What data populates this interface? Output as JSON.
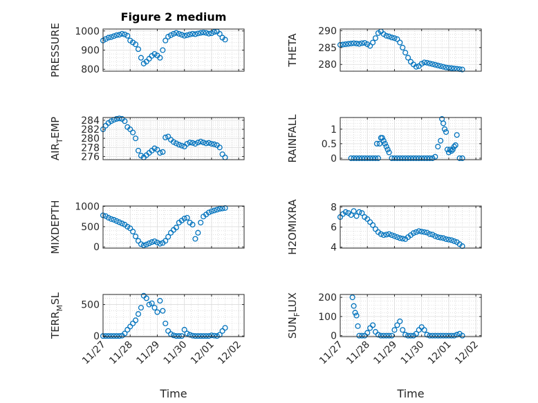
{
  "figure_title": "Figure 2 medium",
  "series_color": "#0072BD",
  "xaxis": {
    "label": "Time",
    "range": [
      0,
      5.2
    ],
    "ticks": [
      0,
      1,
      2,
      3,
      4,
      5
    ],
    "tick_labels": [
      "11/27",
      "11/28",
      "11/29",
      "11/30",
      "12/01",
      "12/02"
    ]
  },
  "chart_data": [
    {
      "type": "scatter",
      "title": "Figure 2 medium",
      "ylabel": "PRESSURE",
      "ylabel_sub": "",
      "xlabel": "",
      "ylim": [
        790,
        1010
      ],
      "yticks": [
        800,
        900,
        1000
      ],
      "ytick_labels": [
        "800",
        "900",
        "1000"
      ],
      "xticklabels_visible": false,
      "x": [
        0,
        0.1,
        0.2,
        0.3,
        0.4,
        0.5,
        0.6,
        0.7,
        0.8,
        0.9,
        1,
        1.1,
        1.2,
        1.3,
        1.4,
        1.5,
        1.6,
        1.7,
        1.8,
        1.9,
        2,
        2.1,
        2.2,
        2.3,
        2.4,
        2.5,
        2.6,
        2.7,
        2.8,
        2.9,
        3,
        3.1,
        3.2,
        3.3,
        3.4,
        3.5,
        3.6,
        3.7,
        3.8,
        3.9,
        4,
        4.1,
        4.2,
        4.3,
        4.4,
        4.5
      ],
      "y": [
        950,
        958,
        965,
        968,
        973,
        978,
        980,
        985,
        982,
        975,
        950,
        940,
        930,
        905,
        860,
        830,
        840,
        855,
        870,
        880,
        872,
        860,
        900,
        950,
        970,
        978,
        985,
        990,
        985,
        980,
        975,
        978,
        982,
        985,
        983,
        987,
        990,
        992,
        990,
        986,
        988,
        995,
        997,
        985,
        965,
        955
      ]
    },
    {
      "type": "scatter",
      "title": "",
      "ylabel": "THETA",
      "ylabel_sub": "",
      "xlabel": "",
      "ylim": [
        278,
        290.5
      ],
      "yticks": [
        280,
        285,
        290
      ],
      "ytick_labels": [
        "280",
        "285",
        "290"
      ],
      "xticklabels_visible": false,
      "x": [
        0,
        0.1,
        0.2,
        0.3,
        0.4,
        0.5,
        0.6,
        0.7,
        0.8,
        0.9,
        1,
        1.1,
        1.2,
        1.3,
        1.4,
        1.5,
        1.6,
        1.7,
        1.8,
        1.9,
        2,
        2.1,
        2.2,
        2.3,
        2.4,
        2.5,
        2.6,
        2.7,
        2.8,
        2.9,
        3,
        3.1,
        3.2,
        3.3,
        3.4,
        3.5,
        3.6,
        3.7,
        3.8,
        3.9,
        4,
        4.1,
        4.2,
        4.3,
        4.4,
        4.5
      ],
      "y": [
        285.8,
        285.9,
        286,
        286.1,
        286.2,
        286.3,
        286.2,
        286.1,
        286.3,
        286.4,
        286,
        285.5,
        286.5,
        287.8,
        289.3,
        289.8,
        289,
        288.5,
        288.3,
        288,
        287.8,
        287.5,
        286.5,
        285,
        283.5,
        282,
        280.8,
        280,
        279.3,
        279.5,
        280.2,
        280.6,
        280.5,
        280.3,
        280.1,
        279.9,
        279.7,
        279.5,
        279.3,
        279.1,
        279,
        278.9,
        278.8,
        278.7,
        278.6,
        278.5
      ]
    },
    {
      "type": "scatter",
      "title": "",
      "ylabel": "AIR",
      "ylabel_sub": "T",
      "ylabel_rest": "EMP",
      "xlabel": "",
      "ylim": [
        275.3,
        284.6
      ],
      "yticks": [
        276,
        278,
        280,
        282,
        284
      ],
      "ytick_labels": [
        "276",
        "278",
        "280",
        "282",
        "284"
      ],
      "xticklabels_visible": false,
      "x": [
        0,
        0.1,
        0.2,
        0.3,
        0.4,
        0.5,
        0.6,
        0.7,
        0.8,
        0.9,
        1,
        1.1,
        1.2,
        1.3,
        1.4,
        1.5,
        1.6,
        1.7,
        1.8,
        1.9,
        2,
        2.1,
        2.2,
        2.3,
        2.4,
        2.5,
        2.6,
        2.7,
        2.8,
        2.9,
        3,
        3.1,
        3.2,
        3.3,
        3.4,
        3.5,
        3.6,
        3.7,
        3.8,
        3.9,
        4,
        4.1,
        4.2,
        4.3,
        4.4,
        4.5
      ],
      "y": [
        282,
        282.8,
        283.4,
        283.8,
        284.1,
        284.3,
        284.4,
        284.3,
        283.8,
        282.5,
        282,
        281.3,
        280,
        277.3,
        276.2,
        275.8,
        276.3,
        276.8,
        277.3,
        277.8,
        277.5,
        276.8,
        277,
        280.2,
        280.4,
        279.7,
        279.2,
        278.9,
        278.6,
        278.4,
        278.2,
        278.8,
        279.1,
        279,
        278.8,
        279.1,
        279.3,
        279.1,
        278.9,
        279,
        278.8,
        278.7,
        278.5,
        278,
        276.5,
        275.8
      ]
    },
    {
      "type": "scatter",
      "title": "",
      "ylabel": "RAINFALL",
      "ylabel_sub": "",
      "xlabel": "",
      "ylim": [
        -0.05,
        1.4
      ],
      "yticks": [
        0,
        0.5,
        1
      ],
      "ytick_labels": [
        "0",
        "0.5",
        "1"
      ],
      "xticklabels_visible": false,
      "x": [
        0.4,
        0.5,
        0.6,
        0.7,
        0.8,
        0.9,
        1,
        1.1,
        1.2,
        1.3,
        1.35,
        1.4,
        1.45,
        1.5,
        1.55,
        1.6,
        1.65,
        1.7,
        1.75,
        1.8,
        1.9,
        2,
        2.1,
        2.2,
        2.3,
        2.4,
        2.5,
        2.6,
        2.7,
        2.8,
        2.9,
        3,
        3.1,
        3.2,
        3.3,
        3.4,
        3.5,
        3.6,
        3.7,
        3.75,
        3.8,
        3.85,
        3.9,
        3.95,
        4,
        4.05,
        4.1,
        4.15,
        4.2,
        4.25,
        4.3,
        4.4,
        4.5
      ],
      "y": [
        0,
        0,
        0,
        0,
        0,
        0,
        0,
        0,
        0,
        0,
        0.5,
        0,
        0.5,
        0.7,
        0.7,
        0.6,
        0.5,
        0.4,
        0.3,
        0.2,
        0,
        0,
        0,
        0,
        0,
        0,
        0,
        0,
        0,
        0,
        0,
        0,
        0,
        0,
        0,
        0,
        0.05,
        0.4,
        0.6,
        1.35,
        1.2,
        1.0,
        0.9,
        0.3,
        0.2,
        0.3,
        0.25,
        0.3,
        0.4,
        0.45,
        0.8,
        0,
        0
      ]
    },
    {
      "type": "scatter",
      "title": "",
      "ylabel": "MIXDEPTH",
      "ylabel_sub": "",
      "xlabel": "",
      "ylim": [
        -30,
        1010
      ],
      "yticks": [
        0,
        500,
        1000
      ],
      "ytick_labels": [
        "0",
        "500",
        "1000"
      ],
      "xticklabels_visible": false,
      "x": [
        0,
        0.1,
        0.2,
        0.3,
        0.4,
        0.5,
        0.6,
        0.7,
        0.8,
        0.9,
        1,
        1.1,
        1.2,
        1.3,
        1.4,
        1.5,
        1.6,
        1.7,
        1.8,
        1.9,
        2,
        2.1,
        2.2,
        2.3,
        2.4,
        2.5,
        2.6,
        2.7,
        2.8,
        2.9,
        3,
        3.1,
        3.2,
        3.3,
        3.4,
        3.5,
        3.6,
        3.7,
        3.8,
        3.9,
        4,
        4.1,
        4.2,
        4.3,
        4.4,
        4.5
      ],
      "y": [
        780,
        760,
        720,
        690,
        670,
        640,
        610,
        580,
        550,
        500,
        460,
        380,
        260,
        150,
        70,
        40,
        60,
        90,
        120,
        140,
        110,
        80,
        100,
        150,
        250,
        350,
        420,
        480,
        600,
        650,
        700,
        720,
        600,
        550,
        200,
        350,
        600,
        750,
        800,
        850,
        880,
        900,
        920,
        940,
        950,
        960
      ]
    },
    {
      "type": "scatter",
      "title": "",
      "ylabel": "H2OMIXRA",
      "ylabel_sub": "",
      "xlabel": "",
      "ylim": [
        3.9,
        8.1
      ],
      "yticks": [
        4,
        6,
        8
      ],
      "ytick_labels": [
        "4",
        "6",
        "8"
      ],
      "xticklabels_visible": false,
      "x": [
        0,
        0.1,
        0.2,
        0.3,
        0.4,
        0.5,
        0.6,
        0.7,
        0.8,
        0.9,
        1,
        1.1,
        1.2,
        1.3,
        1.4,
        1.5,
        1.6,
        1.7,
        1.8,
        1.9,
        2,
        2.1,
        2.2,
        2.3,
        2.4,
        2.5,
        2.6,
        2.7,
        2.8,
        2.9,
        3,
        3.1,
        3.2,
        3.3,
        3.4,
        3.5,
        3.6,
        3.7,
        3.8,
        3.9,
        4,
        4.1,
        4.2,
        4.3,
        4.4,
        4.5
      ],
      "y": [
        7,
        7.3,
        7.5,
        7.4,
        7.2,
        7.6,
        7.1,
        7.5,
        7.4,
        7.0,
        6.8,
        6.5,
        6.2,
        5.8,
        5.5,
        5.3,
        5.2,
        5.25,
        5.3,
        5.2,
        5.1,
        5.0,
        4.9,
        4.85,
        4.8,
        5.0,
        5.2,
        5.4,
        5.5,
        5.6,
        5.55,
        5.5,
        5.45,
        5.3,
        5.25,
        5.1,
        5.0,
        4.95,
        4.9,
        4.8,
        4.75,
        4.7,
        4.6,
        4.5,
        4.3,
        4.1
      ]
    },
    {
      "type": "scatter",
      "title": "",
      "ylabel": "TERR",
      "ylabel_sub": "M",
      "ylabel_rest": "SL",
      "xlabel": "Time",
      "ylim": [
        -10,
        660
      ],
      "yticks": [
        0,
        500
      ],
      "ytick_labels": [
        "0",
        "500"
      ],
      "xticklabels_visible": true,
      "x": [
        0,
        0.1,
        0.2,
        0.3,
        0.4,
        0.5,
        0.6,
        0.7,
        0.8,
        0.9,
        1,
        1.1,
        1.2,
        1.3,
        1.4,
        1.5,
        1.6,
        1.7,
        1.8,
        1.9,
        2,
        2.1,
        2.2,
        2.3,
        2.4,
        2.5,
        2.6,
        2.7,
        2.8,
        2.9,
        3,
        3.1,
        3.2,
        3.3,
        3.4,
        3.5,
        3.6,
        3.7,
        3.8,
        3.9,
        4,
        4.1,
        4.2,
        4.3,
        4.4,
        4.5
      ],
      "y": [
        0,
        0,
        0,
        0,
        0,
        0,
        0,
        5,
        40,
        100,
        150,
        200,
        250,
        350,
        450,
        640,
        600,
        500,
        520,
        450,
        380,
        560,
        400,
        200,
        80,
        30,
        10,
        0,
        0,
        0,
        100,
        40,
        20,
        5,
        0,
        0,
        0,
        0,
        0,
        0,
        10,
        5,
        0,
        20,
        80,
        130
      ]
    },
    {
      "type": "scatter",
      "title": "",
      "ylabel": "SUN",
      "ylabel_sub": "F",
      "ylabel_rest": "LUX",
      "xlabel": "Time",
      "ylim": [
        -5,
        215
      ],
      "yticks": [
        0,
        100,
        200
      ],
      "ytick_labels": [
        "0",
        "100",
        "200"
      ],
      "xticklabels_visible": true,
      "x": [
        0.45,
        0.5,
        0.55,
        0.6,
        0.65,
        0.7,
        0.8,
        0.9,
        1,
        1.1,
        1.2,
        1.3,
        1.4,
        1.5,
        1.6,
        1.7,
        1.8,
        1.9,
        2,
        2.1,
        2.2,
        2.3,
        2.4,
        2.5,
        2.6,
        2.7,
        2.8,
        2.9,
        3,
        3.1,
        3.2,
        3.3,
        3.4,
        3.5,
        3.6,
        3.7,
        3.8,
        3.9,
        4,
        4.1,
        4.2,
        4.3,
        4.4,
        4.5
      ],
      "y": [
        200,
        155,
        120,
        105,
        50,
        0,
        0,
        0,
        15,
        40,
        55,
        20,
        5,
        0,
        0,
        0,
        0,
        0,
        30,
        55,
        75,
        30,
        5,
        0,
        0,
        0,
        10,
        30,
        45,
        30,
        5,
        0,
        0,
        0,
        0,
        0,
        0,
        0,
        0,
        0,
        0,
        5,
        10,
        0
      ]
    }
  ]
}
